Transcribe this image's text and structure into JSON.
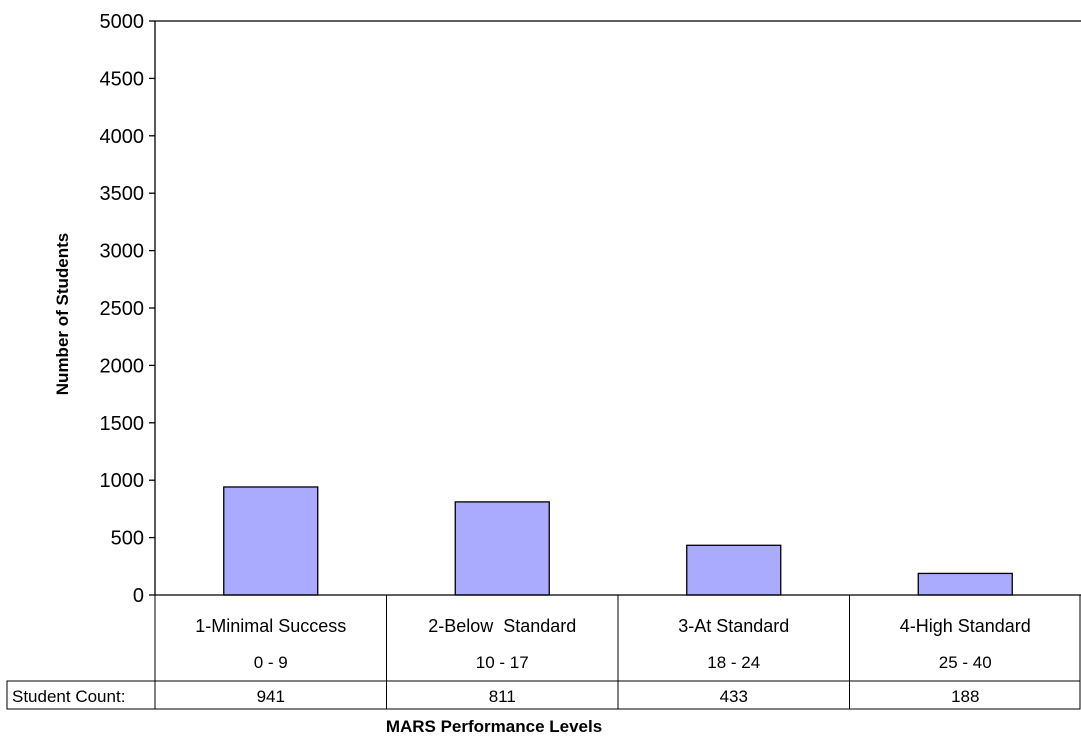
{
  "chart_data": {
    "type": "bar",
    "categories": [
      "1-Minimal Success",
      "2-Below  Standard",
      "3-At Standard",
      "4-High Standard"
    ],
    "score_ranges": [
      "0 - 9",
      "10 - 17",
      "18 - 24",
      "25 - 40"
    ],
    "values": [
      941,
      811,
      433,
      188
    ],
    "count_row_label": "Student Count:",
    "ylabel": "Number of Students",
    "xlabel": "MARS Performance Levels",
    "ylim": [
      0,
      5000
    ],
    "yticks": [
      0,
      500,
      1000,
      1500,
      2000,
      2500,
      3000,
      3500,
      4000,
      4500,
      5000
    ],
    "bar_color": "#aaaaff",
    "grid": false,
    "legend": "none"
  }
}
